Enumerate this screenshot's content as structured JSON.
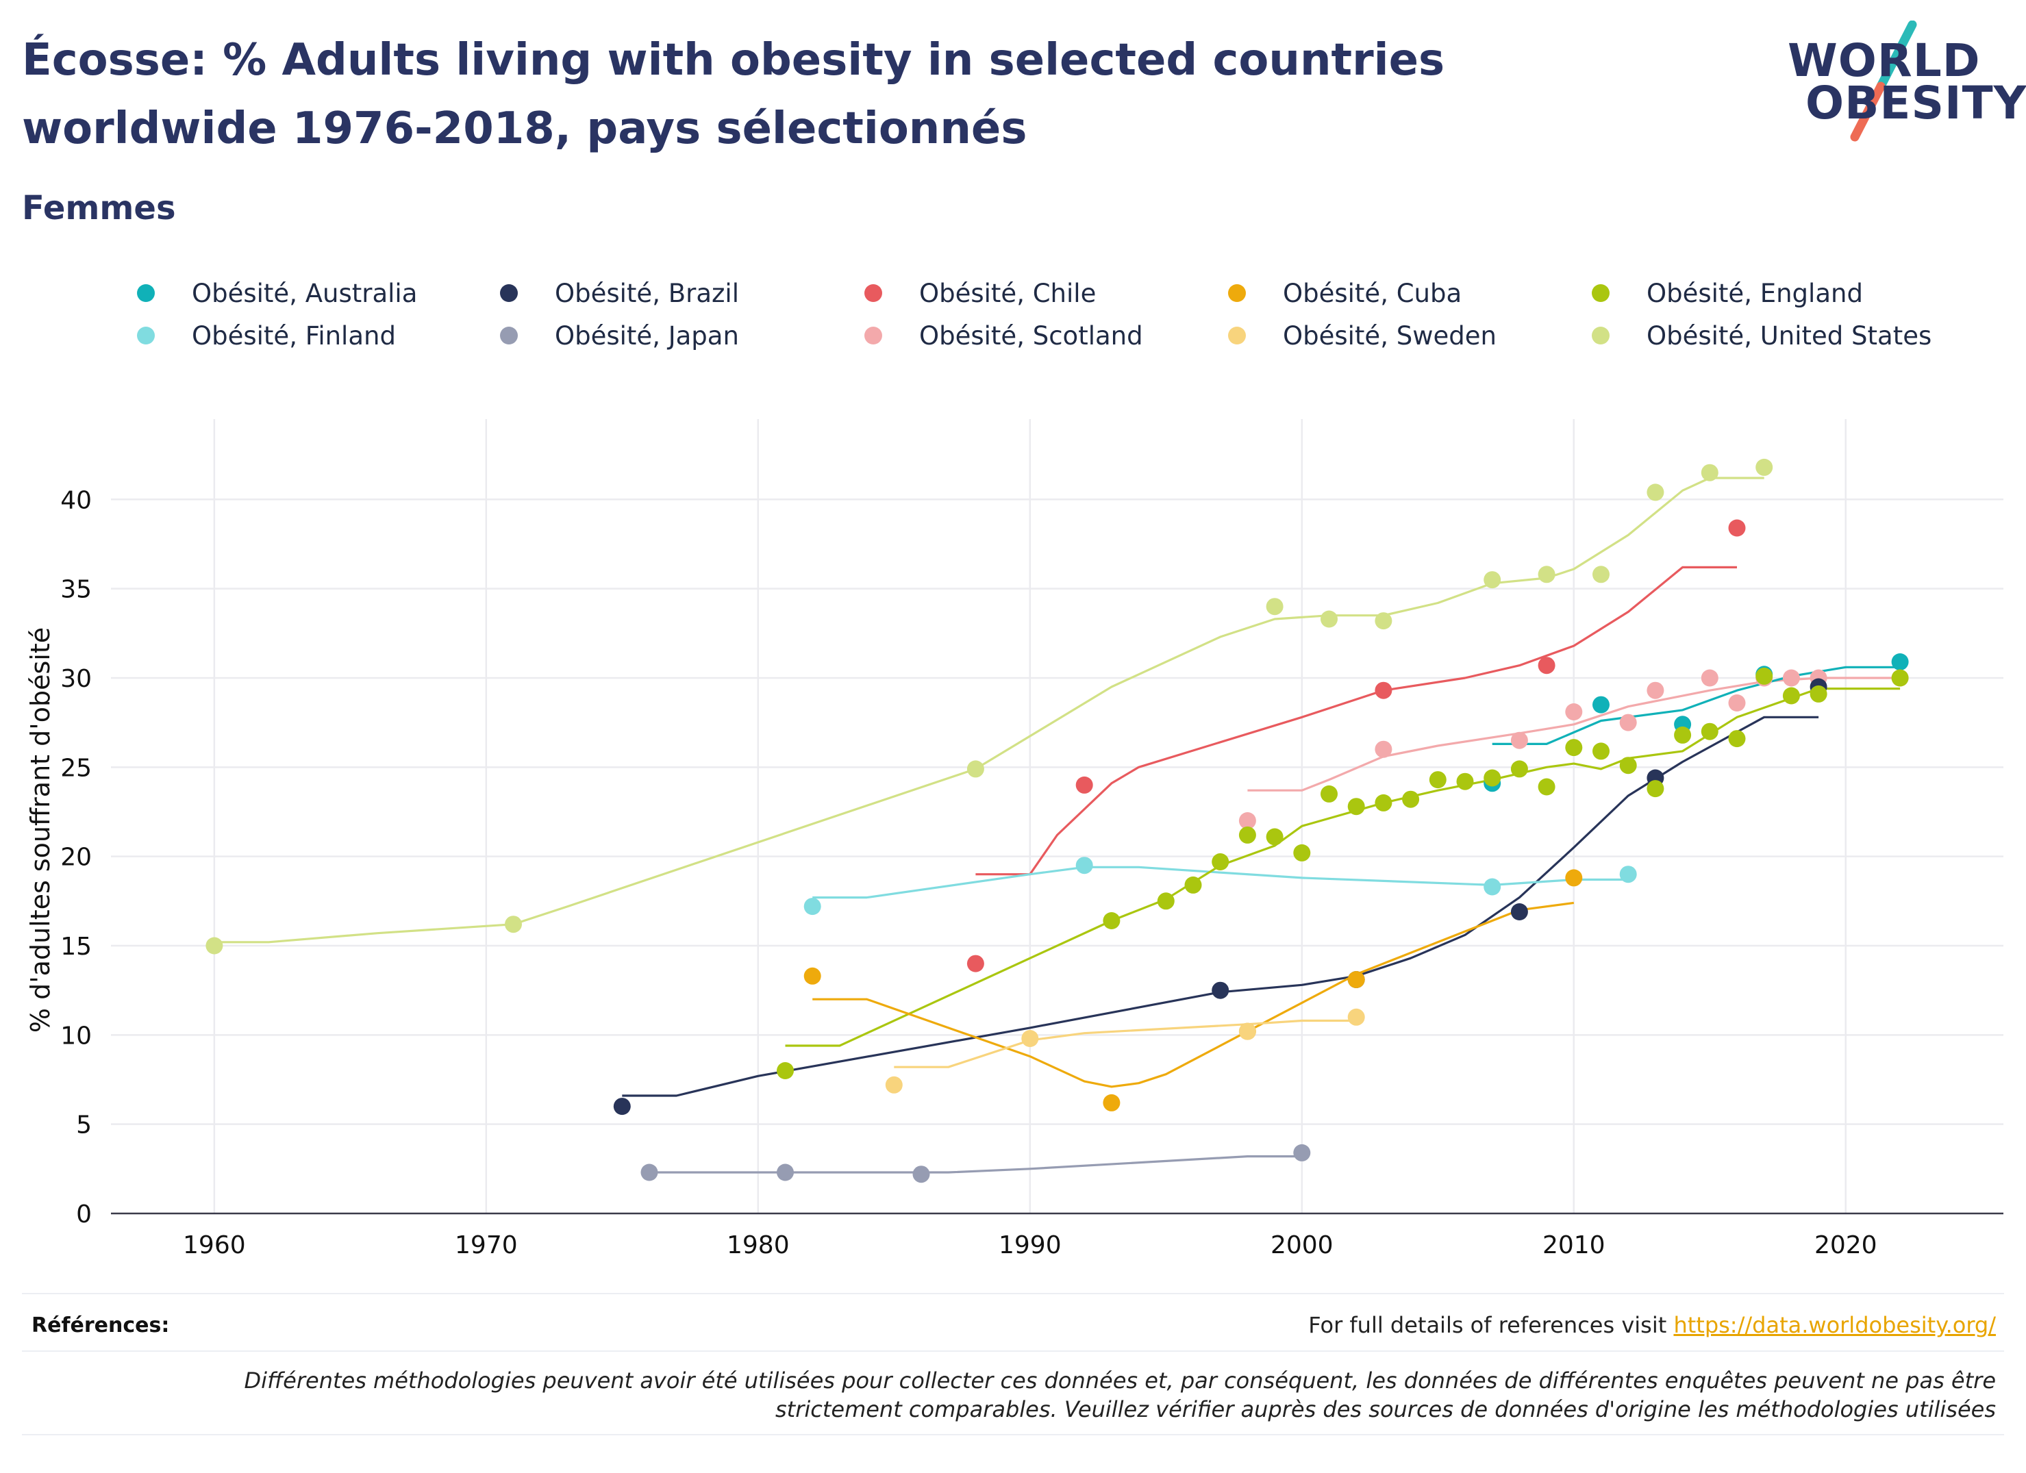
{
  "header": {
    "title": "Écosse: % Adults living with obesity in selected countries worldwide 1976-2018, pays sélectionnés",
    "subtitle": "Femmes"
  },
  "logo": {
    "line1": "WORLD",
    "line2": "OBESITY"
  },
  "legend": {
    "items": [
      {
        "label": "Obésité, Australia",
        "color": "#10b1b8"
      },
      {
        "label": "Obésité, Brazil",
        "color": "#283459"
      },
      {
        "label": "Obésité, Chile",
        "color": "#e85a5e"
      },
      {
        "label": "Obésité, Cuba",
        "color": "#eeaa0c"
      },
      {
        "label": "Obésité, England",
        "color": "#aac60f"
      },
      {
        "label": "Obésité, Finland",
        "color": "#80dce0"
      },
      {
        "label": "Obésité, Japan",
        "color": "#969cb2"
      },
      {
        "label": "Obésité, Scotland",
        "color": "#f3a9ab"
      },
      {
        "label": "Obésité, Sweden",
        "color": "#f8d47d"
      },
      {
        "label": "Obésité, United States",
        "color": "#d2e186"
      }
    ]
  },
  "chart_data": {
    "type": "scatter",
    "ylabel": "% d'adultes souffrant d'obésité",
    "xlabel": "",
    "xlim": [
      1956.2,
      2025.8
    ],
    "ylim": [
      0,
      44.5
    ],
    "x_ticks": [
      1960,
      1970,
      1980,
      1990,
      2000,
      2010,
      2020
    ],
    "y_ticks": [
      0,
      5,
      10,
      15,
      20,
      25,
      30,
      35,
      40
    ],
    "grid": true,
    "legend_position": "top",
    "series": [
      {
        "name": "Obésité, United States",
        "color": "#d2e186",
        "points": [
          [
            1960,
            15
          ],
          [
            1971,
            16.2
          ],
          [
            1988,
            24.9
          ],
          [
            1999,
            34
          ],
          [
            2001,
            33.3
          ],
          [
            2003,
            33.2
          ],
          [
            2007,
            35.5
          ],
          [
            2009,
            35.8
          ],
          [
            2011,
            35.8
          ],
          [
            2013,
            40.4
          ],
          [
            2015,
            41.5
          ],
          [
            2017,
            41.8
          ]
        ],
        "trend": [
          [
            1960,
            15.2
          ],
          [
            1962,
            15.2
          ],
          [
            1966,
            15.7
          ],
          [
            1971,
            16.2
          ],
          [
            1973,
            17.2
          ],
          [
            1988,
            24.9
          ],
          [
            1993,
            29.5
          ],
          [
            1997,
            32.3
          ],
          [
            1999,
            33.3
          ],
          [
            2001,
            33.5
          ],
          [
            2003,
            33.5
          ],
          [
            2005,
            34.2
          ],
          [
            2007,
            35.3
          ],
          [
            2009,
            35.6
          ],
          [
            2010,
            36.1
          ],
          [
            2012,
            38
          ],
          [
            2014,
            40.5
          ],
          [
            2015,
            41.2
          ],
          [
            2017,
            41.2
          ]
        ]
      },
      {
        "name": "Obésité, Chile",
        "color": "#e85a5e",
        "points": [
          [
            1988,
            14
          ],
          [
            1992,
            24
          ],
          [
            2003,
            29.3
          ],
          [
            2009,
            30.7
          ],
          [
            2016,
            38.4
          ]
        ],
        "trend": [
          [
            1988,
            19
          ],
          [
            1990,
            19
          ],
          [
            1991,
            21.2
          ],
          [
            1993,
            24.1
          ],
          [
            1994,
            25
          ],
          [
            2000,
            27.8
          ],
          [
            2003,
            29.3
          ],
          [
            2006,
            30
          ],
          [
            2008,
            30.7
          ],
          [
            2010,
            31.8
          ],
          [
            2012,
            33.7
          ],
          [
            2014,
            36.2
          ],
          [
            2016,
            36.2
          ]
        ]
      },
      {
        "name": "Obésité, Scotland",
        "color": "#f3a9ab",
        "points": [
          [
            1998,
            22
          ],
          [
            2003,
            26
          ],
          [
            2008,
            26.5
          ],
          [
            2010,
            28.1
          ],
          [
            2012,
            27.5
          ],
          [
            2013,
            29.3
          ],
          [
            2015,
            30
          ],
          [
            2016,
            28.6
          ],
          [
            2017,
            30
          ],
          [
            2018,
            30
          ],
          [
            2019,
            30
          ],
          [
            2022,
            30
          ]
        ],
        "trend": [
          [
            1998,
            23.7
          ],
          [
            2000,
            23.7
          ],
          [
            2001,
            24.3
          ],
          [
            2003,
            25.6
          ],
          [
            2005,
            26.2
          ],
          [
            2008,
            26.9
          ],
          [
            2010,
            27.4
          ],
          [
            2012,
            28.4
          ],
          [
            2015,
            29.3
          ],
          [
            2017,
            29.8
          ],
          [
            2019,
            30
          ],
          [
            2022,
            30
          ]
        ]
      },
      {
        "name": "Obésité, Australia",
        "color": "#10b1b8",
        "points": [
          [
            2007,
            24.1
          ],
          [
            2011,
            28.5
          ],
          [
            2014,
            27.4
          ],
          [
            2017,
            30.2
          ],
          [
            2022,
            30.9
          ]
        ],
        "trend": [
          [
            2007,
            26.3
          ],
          [
            2009,
            26.3
          ],
          [
            2011,
            27.6
          ],
          [
            2014,
            28.2
          ],
          [
            2016,
            29.3
          ],
          [
            2018,
            30.1
          ],
          [
            2020,
            30.6
          ],
          [
            2022,
            30.6
          ]
        ]
      },
      {
        "name": "Obésité, Brazil",
        "color": "#283459",
        "points": [
          [
            1975,
            6
          ],
          [
            1997,
            12.5
          ],
          [
            2002,
            13.1
          ],
          [
            2008,
            16.9
          ],
          [
            2013,
            24.4
          ],
          [
            2019,
            29.5
          ]
        ],
        "trend": [
          [
            1975,
            6.6
          ],
          [
            1977,
            6.6
          ],
          [
            1980,
            7.7
          ],
          [
            1990,
            10.4
          ],
          [
            1997,
            12.4
          ],
          [
            2000,
            12.8
          ],
          [
            2002,
            13.3
          ],
          [
            2004,
            14.3
          ],
          [
            2006,
            15.6
          ],
          [
            2008,
            17.7
          ],
          [
            2010,
            20.5
          ],
          [
            2012,
            23.4
          ],
          [
            2014,
            25.3
          ],
          [
            2017,
            27.8
          ],
          [
            2019,
            27.8
          ]
        ]
      },
      {
        "name": "Obésité, Finland",
        "color": "#80dce0",
        "points": [
          [
            1982,
            17.2
          ],
          [
            1992,
            19.5
          ],
          [
            2007,
            18.3
          ],
          [
            2012,
            19
          ]
        ],
        "trend": [
          [
            1982,
            17.7
          ],
          [
            1984,
            17.7
          ],
          [
            1990,
            19
          ],
          [
            1992,
            19.4
          ],
          [
            1994,
            19.4
          ],
          [
            2000,
            18.8
          ],
          [
            2007,
            18.4
          ],
          [
            2010,
            18.7
          ],
          [
            2012,
            18.7
          ]
        ]
      },
      {
        "name": "Obésité, England",
        "color": "#aac60f",
        "points": [
          [
            1981,
            8
          ],
          [
            1993,
            16.4
          ],
          [
            1995,
            17.5
          ],
          [
            1996,
            18.4
          ],
          [
            1997,
            19.7
          ],
          [
            1998,
            21.2
          ],
          [
            1999,
            21.1
          ],
          [
            2000,
            20.2
          ],
          [
            2001,
            23.5
          ],
          [
            2002,
            22.8
          ],
          [
            2003,
            23
          ],
          [
            2004,
            23.2
          ],
          [
            2005,
            24.3
          ],
          [
            2006,
            24.2
          ],
          [
            2007,
            24.4
          ],
          [
            2008,
            24.9
          ],
          [
            2009,
            23.9
          ],
          [
            2010,
            26.1
          ],
          [
            2011,
            25.9
          ],
          [
            2012,
            25.1
          ],
          [
            2013,
            23.8
          ],
          [
            2014,
            26.8
          ],
          [
            2015,
            27
          ],
          [
            2016,
            26.6
          ],
          [
            2017,
            30.1
          ],
          [
            2018,
            29
          ],
          [
            2019,
            29.1
          ],
          [
            2022,
            30
          ]
        ],
        "trend": [
          [
            1981,
            9.4
          ],
          [
            1983,
            9.4
          ],
          [
            1993,
            16.4
          ],
          [
            1995,
            17.6
          ],
          [
            1997,
            19.5
          ],
          [
            1999,
            20.6
          ],
          [
            2000,
            21.7
          ],
          [
            2003,
            23
          ],
          [
            2005,
            23.7
          ],
          [
            2007,
            24.3
          ],
          [
            2009,
            25
          ],
          [
            2010,
            25.2
          ],
          [
            2011,
            24.9
          ],
          [
            2012,
            25.5
          ],
          [
            2014,
            25.9
          ],
          [
            2016,
            27.8
          ],
          [
            2019,
            29.4
          ],
          [
            2022,
            29.4
          ]
        ]
      },
      {
        "name": "Obésité, Cuba",
        "color": "#eeaa0c",
        "points": [
          [
            1982,
            13.3
          ],
          [
            1993,
            6.2
          ],
          [
            1998,
            10.2
          ],
          [
            2002,
            13.1
          ],
          [
            2010,
            18.8
          ]
        ],
        "trend": [
          [
            1982,
            12
          ],
          [
            1984,
            12
          ],
          [
            1990,
            8.8
          ],
          [
            1992,
            7.4
          ],
          [
            1993,
            7.1
          ],
          [
            1994,
            7.3
          ],
          [
            1995,
            7.8
          ],
          [
            1998,
            10.2
          ],
          [
            2000,
            11.8
          ],
          [
            2002,
            13.4
          ],
          [
            2004,
            14.6
          ],
          [
            2006,
            15.8
          ],
          [
            2008,
            17
          ],
          [
            2010,
            17.4
          ]
        ]
      },
      {
        "name": "Obésité, Sweden",
        "color": "#f8d47d",
        "points": [
          [
            1985,
            7.2
          ],
          [
            1990,
            9.8
          ],
          [
            1998,
            10.2
          ],
          [
            2002,
            11
          ]
        ],
        "trend": [
          [
            1985,
            8.2
          ],
          [
            1987,
            8.2
          ],
          [
            1990,
            9.7
          ],
          [
            1992,
            10.1
          ],
          [
            1998,
            10.6
          ],
          [
            2000,
            10.8
          ],
          [
            2002,
            10.8
          ]
        ]
      },
      {
        "name": "Obésité, Japan",
        "color": "#969cb2",
        "points": [
          [
            1976,
            2.3
          ],
          [
            1981,
            2.3
          ],
          [
            1986,
            2.2
          ],
          [
            2000,
            3.4
          ]
        ],
        "trend": [
          [
            1976,
            2.3
          ],
          [
            1987,
            2.3
          ],
          [
            1990,
            2.5
          ],
          [
            1998,
            3.2
          ],
          [
            2000,
            3.2
          ]
        ]
      }
    ]
  },
  "footer": {
    "refs_label": "Références:",
    "refs_prefix": "For full details of references visit ",
    "refs_link": "https://data.worldobesity.org/",
    "note": "Différentes méthodologies peuvent avoir été utilisées pour collecter ces données et, par conséquent, les données de différentes enquêtes peuvent ne pas être strictement comparables. Veuillez vérifier auprès des sources de données d'origine les méthodologies utilisées"
  }
}
